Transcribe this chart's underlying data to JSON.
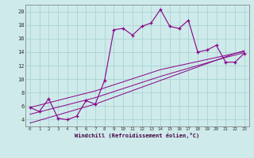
{
  "xlabel": "Windchill (Refroidissement éolien,°C)",
  "background_color": "#ceeaea",
  "grid_color": "#aad4d4",
  "line_color": "#880088",
  "x_data": [
    0,
    1,
    2,
    3,
    4,
    5,
    6,
    7,
    8,
    9,
    10,
    11,
    12,
    13,
    14,
    15,
    16,
    17,
    18,
    19,
    20,
    21,
    22,
    23
  ],
  "y_temp": [
    5.8,
    5.2,
    7.1,
    4.2,
    4.0,
    4.5,
    6.8,
    6.3,
    9.8,
    17.3,
    17.5,
    16.5,
    17.8,
    18.3,
    20.3,
    17.8,
    17.5,
    18.7,
    14.0,
    14.3,
    15.0,
    12.5,
    12.5,
    13.8
  ],
  "y_lin1": [
    5.8,
    6.15,
    6.5,
    6.85,
    7.2,
    7.55,
    7.9,
    8.25,
    8.7,
    9.15,
    9.6,
    10.05,
    10.5,
    10.95,
    11.4,
    11.7,
    12.0,
    12.3,
    12.6,
    12.9,
    13.2,
    13.5,
    13.8,
    14.1
  ],
  "y_lin2": [
    4.8,
    5.15,
    5.5,
    5.85,
    6.2,
    6.55,
    6.9,
    7.25,
    7.7,
    8.15,
    8.6,
    9.05,
    9.5,
    9.95,
    10.4,
    10.8,
    11.2,
    11.6,
    12.0,
    12.4,
    12.8,
    13.2,
    13.55,
    13.9
  ],
  "y_lin3": [
    3.5,
    3.9,
    4.3,
    4.7,
    5.1,
    5.5,
    5.9,
    6.3,
    6.8,
    7.3,
    7.8,
    8.3,
    8.8,
    9.3,
    9.8,
    10.3,
    10.8,
    11.3,
    11.8,
    12.3,
    12.8,
    13.3,
    13.8,
    14.2
  ],
  "xlim": [
    -0.5,
    23.5
  ],
  "ylim": [
    3,
    21
  ],
  "yticks": [
    4,
    6,
    8,
    10,
    12,
    14,
    16,
    18,
    20
  ],
  "xticks": [
    0,
    1,
    2,
    3,
    4,
    5,
    6,
    7,
    8,
    9,
    10,
    11,
    12,
    13,
    14,
    15,
    16,
    17,
    18,
    19,
    20,
    21,
    22,
    23
  ]
}
